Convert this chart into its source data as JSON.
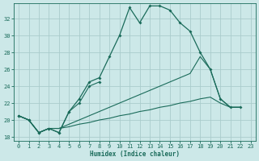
{
  "xlabel": "Humidex (Indice chaleur)",
  "background_color": "#cce8e8",
  "grid_color": "#aacccc",
  "line_color": "#1a6b5a",
  "xlim": [
    -0.5,
    23.5
  ],
  "ylim": [
    17.5,
    33.8
  ],
  "yticks": [
    18,
    20,
    22,
    24,
    26,
    28,
    30,
    32
  ],
  "xticks": [
    0,
    1,
    2,
    3,
    4,
    5,
    6,
    7,
    8,
    9,
    10,
    11,
    12,
    13,
    14,
    15,
    16,
    17,
    18,
    19,
    20,
    21,
    22,
    23
  ],
  "series": {
    "main": {
      "x": [
        0,
        1,
        2,
        3,
        4,
        5,
        6,
        7,
        8,
        9,
        10,
        11,
        12,
        13,
        14,
        15,
        16,
        17,
        18,
        19,
        20,
        21,
        22
      ],
      "y": [
        20.5,
        20.0,
        18.5,
        19.0,
        18.5,
        21.0,
        22.5,
        24.5,
        25.0,
        27.5,
        30.0,
        33.3,
        31.5,
        33.5,
        33.5,
        33.0,
        31.5,
        30.5,
        28.0,
        26.0,
        22.5,
        21.5,
        21.5
      ],
      "marker": true,
      "linestyle": "-"
    },
    "partial": {
      "x": [
        0,
        1,
        2,
        3,
        4,
        5,
        6,
        7,
        8
      ],
      "y": [
        20.5,
        20.0,
        18.5,
        19.0,
        18.5,
        21.0,
        22.0,
        24.0,
        24.5
      ],
      "marker": true,
      "linestyle": "-"
    },
    "line2": {
      "x": [
        0,
        1,
        2,
        3,
        4,
        5,
        6,
        7,
        8,
        9,
        10,
        11,
        12,
        13,
        14,
        15,
        16,
        17,
        18,
        19,
        20,
        21,
        22
      ],
      "y": [
        20.5,
        20.0,
        18.5,
        19.0,
        19.0,
        19.5,
        20.0,
        20.5,
        21.0,
        21.5,
        22.0,
        22.5,
        23.0,
        23.5,
        24.0,
        24.5,
        25.0,
        25.5,
        27.5,
        26.0,
        22.5,
        21.5,
        21.5
      ],
      "marker": false,
      "linestyle": "-"
    },
    "line3": {
      "x": [
        0,
        1,
        2,
        3,
        4,
        5,
        6,
        7,
        8,
        9,
        10,
        11,
        12,
        13,
        14,
        15,
        16,
        17,
        18,
        19,
        20,
        21,
        22
      ],
      "y": [
        20.5,
        20.0,
        18.5,
        19.0,
        19.0,
        19.2,
        19.5,
        19.7,
        20.0,
        20.2,
        20.5,
        20.7,
        21.0,
        21.2,
        21.5,
        21.7,
        22.0,
        22.2,
        22.5,
        22.7,
        22.0,
        21.5,
        21.5
      ],
      "marker": false,
      "linestyle": "-"
    }
  }
}
